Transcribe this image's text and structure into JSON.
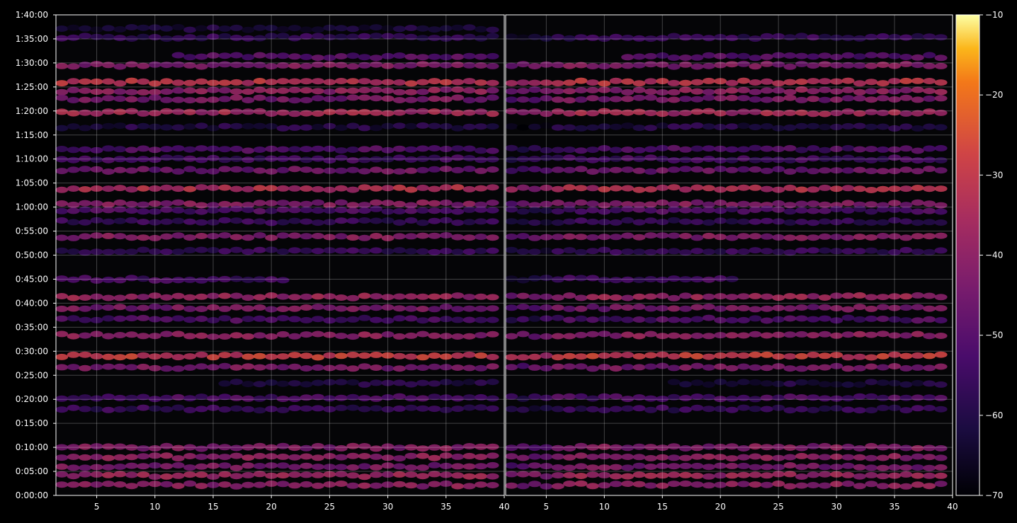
{
  "chart_data": {
    "type": "heatmap",
    "title": "",
    "xlabel": "",
    "ylabel": "",
    "colormap": "inferno",
    "background": "#000000",
    "grid": true,
    "panels": [
      {
        "name": "",
        "xlim": [
          1.5,
          40
        ],
        "x_ticks": [
          "5",
          "10",
          "15",
          "20",
          "25",
          "30",
          "35",
          "40"
        ],
        "x_tick_values": [
          5,
          10,
          15,
          20,
          25,
          30,
          35,
          40
        ]
      },
      {
        "name": "",
        "xlim": [
          1.5,
          40
        ],
        "x_ticks": [
          "5",
          "10",
          "15",
          "20",
          "25",
          "30",
          "35",
          "40"
        ],
        "x_tick_values": [
          5,
          10,
          15,
          20,
          25,
          30,
          35,
          40
        ]
      }
    ],
    "ylim_seconds": [
      0,
      6000
    ],
    "y_ticks": [
      "0:00:00",
      "0:05:00",
      "0:10:00",
      "0:15:00",
      "0:20:00",
      "0:25:00",
      "0:30:00",
      "0:35:00",
      "0:40:00",
      "0:45:00",
      "0:50:00",
      "0:55:00",
      "1:00:00",
      "1:05:00",
      "1:10:00",
      "1:15:00",
      "1:20:00",
      "1:25:00",
      "1:30:00",
      "1:35:00",
      "1:40:00"
    ],
    "y_tick_seconds": [
      0,
      300,
      600,
      900,
      1200,
      1500,
      1800,
      2100,
      2400,
      2700,
      3000,
      3300,
      3600,
      3900,
      4200,
      4500,
      4800,
      5100,
      5400,
      5700,
      6000
    ],
    "colorbar": {
      "range": [
        -70,
        -10
      ],
      "ticks": [
        "−10",
        "−20",
        "−30",
        "−40",
        "−50",
        "−60",
        "−70"
      ],
      "tick_values": [
        -10,
        -20,
        -30,
        -40,
        -50,
        -60,
        -70
      ]
    },
    "bands": [
      {
        "t": 5830,
        "level": -62,
        "x_from": 2,
        "x_to": 40,
        "only_left": true
      },
      {
        "t": 5720,
        "level": -56,
        "x_from": 2,
        "x_to": 40
      },
      {
        "t": 5480,
        "level": -50,
        "x_from": 12,
        "x_to": 40
      },
      {
        "t": 5370,
        "level": -42,
        "x_from": 2,
        "x_to": 40
      },
      {
        "t": 5160,
        "level": -32,
        "x_from": 2,
        "x_to": 40
      },
      {
        "t": 5050,
        "level": -40,
        "x_from": 2,
        "x_to": 40
      },
      {
        "t": 4950,
        "level": -44,
        "x_from": 2,
        "x_to": 40
      },
      {
        "t": 4780,
        "level": -36,
        "x_from": 2,
        "x_to": 40
      },
      {
        "t": 4600,
        "level": -60,
        "x_from": 2,
        "x_to": 40
      },
      {
        "t": 4320,
        "level": -52,
        "x_from": 2,
        "x_to": 40
      },
      {
        "t": 4200,
        "level": -54,
        "x_from": 2,
        "x_to": 40
      },
      {
        "t": 4060,
        "level": -46,
        "x_from": 2,
        "x_to": 40
      },
      {
        "t": 3830,
        "level": -34,
        "x_from": 2,
        "x_to": 40
      },
      {
        "t": 3640,
        "level": -42,
        "x_from": 2,
        "x_to": 40
      },
      {
        "t": 3560,
        "level": -52,
        "x_from": 2,
        "x_to": 40
      },
      {
        "t": 3420,
        "level": -56,
        "x_from": 2,
        "x_to": 40
      },
      {
        "t": 3230,
        "level": -42,
        "x_from": 2,
        "x_to": 40
      },
      {
        "t": 3050,
        "level": -56,
        "x_from": 2,
        "x_to": 40
      },
      {
        "t": 2700,
        "level": -54,
        "x_from": 2,
        "x_to": 22
      },
      {
        "t": 2480,
        "level": -38,
        "x_from": 2,
        "x_to": 40
      },
      {
        "t": 2340,
        "level": -44,
        "x_from": 2,
        "x_to": 40
      },
      {
        "t": 2200,
        "level": -52,
        "x_from": 2,
        "x_to": 40
      },
      {
        "t": 2000,
        "level": -40,
        "x_from": 2,
        "x_to": 40
      },
      {
        "t": 1740,
        "level": -30,
        "x_from": 2,
        "x_to": 40
      },
      {
        "t": 1600,
        "level": -44,
        "x_from": 2,
        "x_to": 40
      },
      {
        "t": 1400,
        "level": -60,
        "x_from": 16,
        "x_to": 40
      },
      {
        "t": 1220,
        "level": -52,
        "x_from": 2,
        "x_to": 40
      },
      {
        "t": 1080,
        "level": -56,
        "x_from": 2,
        "x_to": 40
      },
      {
        "t": 600,
        "level": -42,
        "x_from": 2,
        "x_to": 40
      },
      {
        "t": 480,
        "level": -40,
        "x_from": 2,
        "x_to": 40
      },
      {
        "t": 360,
        "level": -44,
        "x_from": 2,
        "x_to": 40
      },
      {
        "t": 250,
        "level": -38,
        "x_from": 2,
        "x_to": 40
      },
      {
        "t": 130,
        "level": -40,
        "x_from": 2,
        "x_to": 40
      }
    ]
  }
}
